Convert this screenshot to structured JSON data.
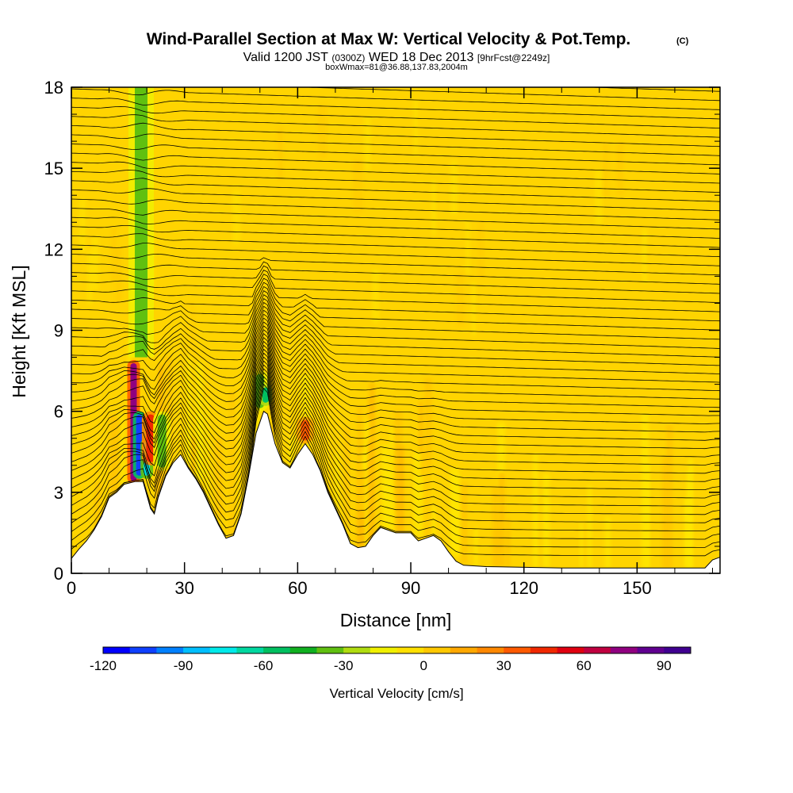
{
  "header": {
    "title": "Wind-Parallel Section at Max W: Vertical Velocity & Pot.Temp.",
    "copyright_mark": "(C)",
    "valid_prefix": "Valid 1200 JST",
    "valid_zulu": "(0300Z)",
    "valid_date": "WED 18 Dec 2013",
    "valid_fcst": "[9hrFcst@2249z]",
    "box_info": "boxWmax=81@36.88,137.83,2004m"
  },
  "chart_data": {
    "type": "heatmap",
    "xlabel": "Distance [nm]",
    "ylabel": "Height [Kft MSL]",
    "xlim": [
      0,
      172
    ],
    "ylim": [
      0,
      18
    ],
    "x_ticks": [
      "0",
      "30",
      "60",
      "90",
      "120",
      "150"
    ],
    "y_ticks": [
      "0",
      "3",
      "6",
      "9",
      "12",
      "15",
      "18"
    ],
    "colorbar": {
      "label": "Vertical Velocity [cm/s]",
      "min": -120,
      "max": 100,
      "step": 10,
      "tick_labels": [
        "-120",
        "-90",
        "-60",
        "-30",
        "0",
        "30",
        "60",
        "90"
      ],
      "colors": [
        "#0000ff",
        "#0f40ff",
        "#0080ff",
        "#00bfff",
        "#00eaea",
        "#00d8a0",
        "#00c060",
        "#10b020",
        "#60c010",
        "#b0dc10",
        "#f0f000",
        "#ffe000",
        "#ffc800",
        "#ffa800",
        "#ff8800",
        "#ff5a00",
        "#f02800",
        "#e00010",
        "#c00040",
        "#900080",
        "#600090",
        "#400090"
      ]
    },
    "terrain_profile": [
      [
        0,
        0.55
      ],
      [
        2,
        0.9
      ],
      [
        4,
        1.2
      ],
      [
        6,
        1.6
      ],
      [
        8,
        2.1
      ],
      [
        10,
        2.8
      ],
      [
        12,
        3.0
      ],
      [
        14,
        3.3
      ],
      [
        17,
        3.4
      ],
      [
        19,
        3.4
      ],
      [
        21,
        2.4
      ],
      [
        22,
        2.2
      ],
      [
        23,
        2.8
      ],
      [
        25,
        3.6
      ],
      [
        27,
        4.1
      ],
      [
        29,
        4.4
      ],
      [
        31,
        3.9
      ],
      [
        33,
        3.5
      ],
      [
        35,
        3.0
      ],
      [
        37,
        2.4
      ],
      [
        39,
        1.8
      ],
      [
        41,
        1.3
      ],
      [
        43,
        1.4
      ],
      [
        45,
        2.2
      ],
      [
        47,
        3.6
      ],
      [
        49,
        5.2
      ],
      [
        51,
        6.0
      ],
      [
        52,
        5.9
      ],
      [
        54,
        4.8
      ],
      [
        56,
        4.1
      ],
      [
        58,
        3.9
      ],
      [
        60,
        4.4
      ],
      [
        62,
        4.8
      ],
      [
        64,
        4.4
      ],
      [
        66,
        3.8
      ],
      [
        68,
        3.0
      ],
      [
        70,
        2.4
      ],
      [
        72,
        1.8
      ],
      [
        74,
        1.1
      ],
      [
        76,
        0.95
      ],
      [
        78,
        1.0
      ],
      [
        80,
        1.4
      ],
      [
        82,
        1.7
      ],
      [
        84,
        1.6
      ],
      [
        86,
        1.5
      ],
      [
        88,
        1.5
      ],
      [
        90,
        1.5
      ],
      [
        92,
        1.2
      ],
      [
        94,
        1.3
      ],
      [
        96,
        1.4
      ],
      [
        98,
        1.2
      ],
      [
        100,
        0.8
      ],
      [
        102,
        0.45
      ],
      [
        104,
        0.3
      ],
      [
        110,
        0.25
      ],
      [
        130,
        0.2
      ],
      [
        150,
        0.2
      ],
      [
        168,
        0.2
      ],
      [
        170,
        0.5
      ],
      [
        172,
        0.6
      ]
    ],
    "features": [
      {
        "x": 16.5,
        "z": [
          3.3,
          7.9
        ],
        "w": 70
      },
      {
        "x": 18.0,
        "z": [
          3.5,
          6.0
        ],
        "w": -110
      },
      {
        "x": 20.0,
        "z": [
          3.5,
          5.0
        ],
        "w": -80
      },
      {
        "x": 18.5,
        "z": [
          8.0,
          18.0
        ],
        "w": -40
      },
      {
        "x": 21.0,
        "z": [
          4.0,
          6.0
        ],
        "w": 40
      },
      {
        "x": 24.0,
        "z": [
          3.8,
          6.0
        ],
        "w": -40
      },
      {
        "x": 50.0,
        "z": [
          6.0,
          7.5
        ],
        "w": -40
      },
      {
        "x": 51.5,
        "z": [
          6.2,
          7.0
        ],
        "w": -60
      },
      {
        "x": 62.0,
        "z": [
          4.8,
          5.8
        ],
        "w": 30
      }
    ]
  }
}
